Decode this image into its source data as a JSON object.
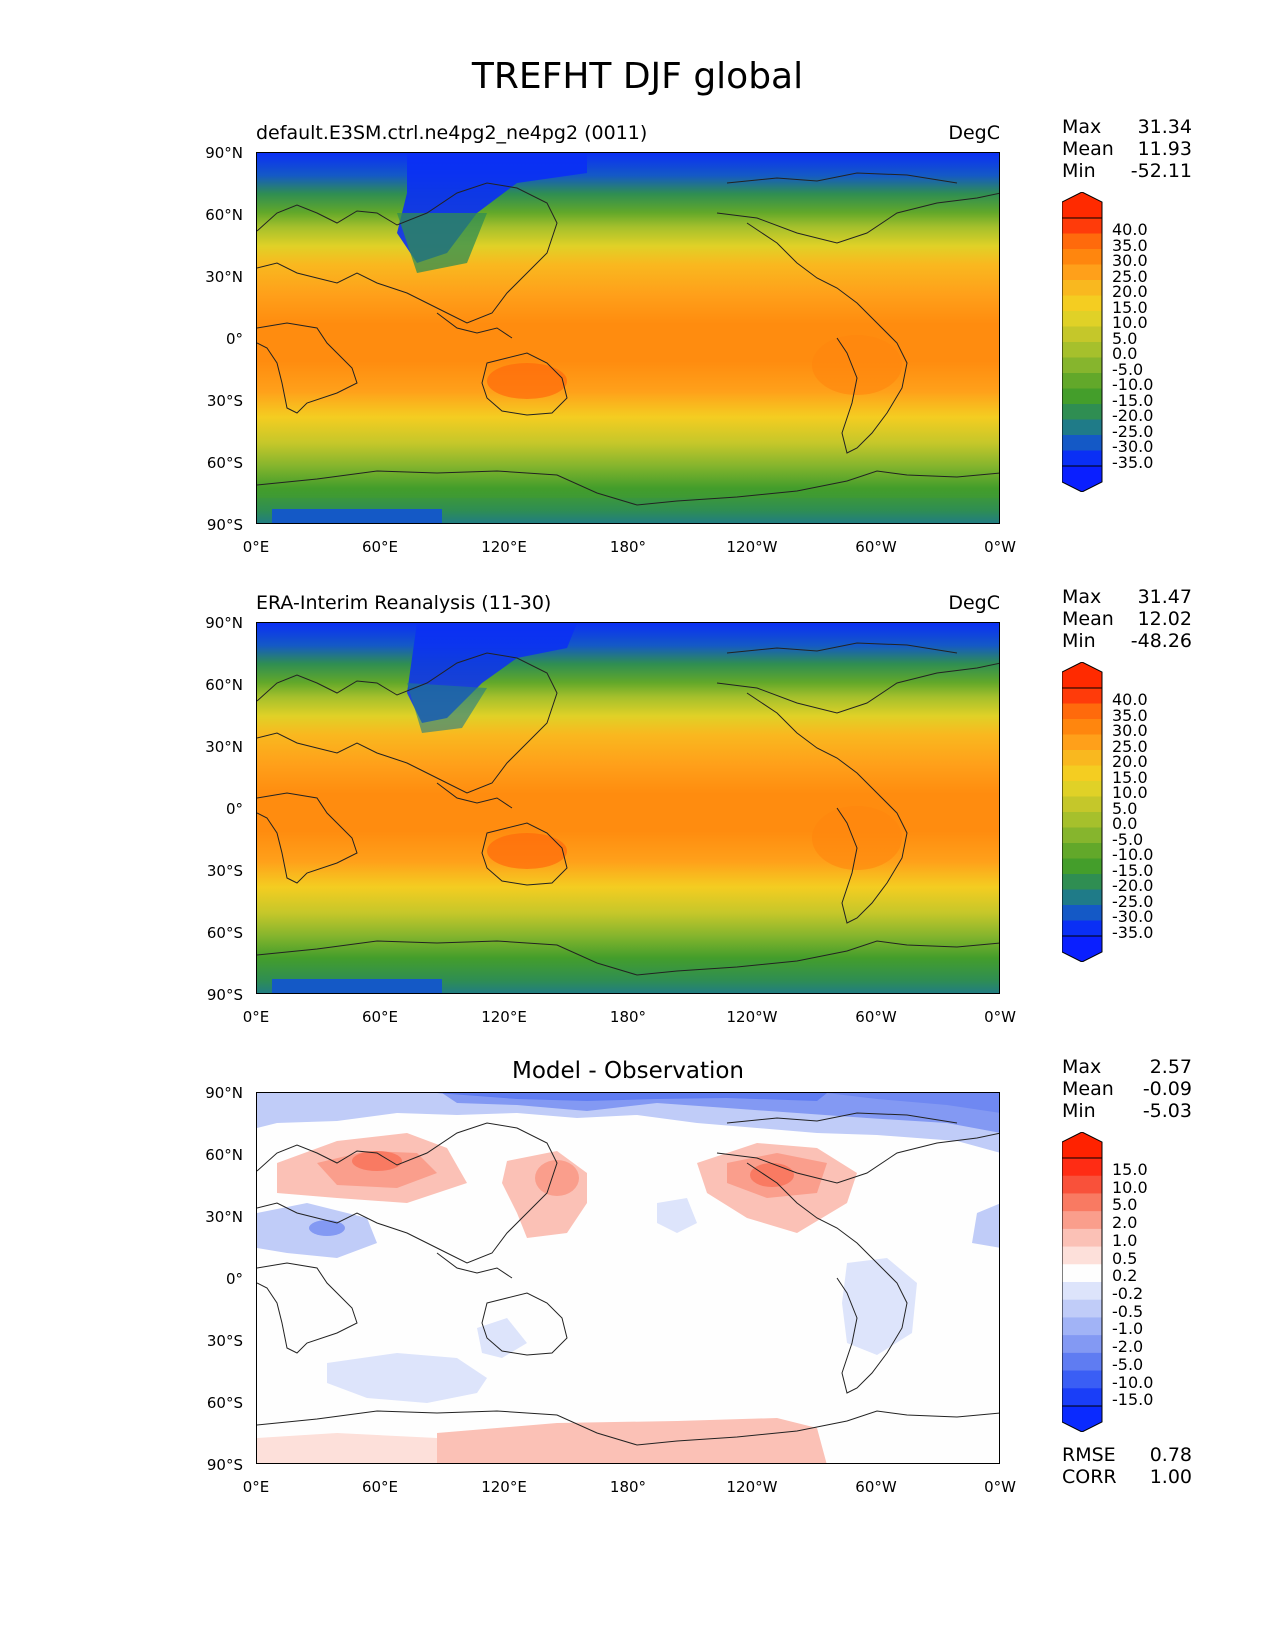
{
  "figure": {
    "title": "TREFHT DJF global"
  },
  "axes": {
    "yticks": [
      "90°N",
      "60°N",
      "30°N",
      "0°",
      "30°S",
      "60°S",
      "90°S"
    ],
    "xticks": [
      "0°E",
      "60°E",
      "120°E",
      "180°",
      "120°W",
      "60°W",
      "0°W"
    ]
  },
  "panels": [
    {
      "id": "model",
      "title_left": "default.E3SM.ctrl.ne4pg2_ne4pg2 (0011)",
      "title_right": "DegC",
      "stats": [
        {
          "label": "Max",
          "value": "31.34"
        },
        {
          "label": "Mean",
          "value": "11.93"
        },
        {
          "label": "Min",
          "value": "-52.11"
        }
      ],
      "colorbar_labels": [
        "40.0",
        "35.0",
        "30.0",
        "25.0",
        "20.0",
        "15.0",
        "10.0",
        "5.0",
        "0.0",
        "-5.0",
        "-10.0",
        "-15.0",
        "-20.0",
        "-25.0",
        "-30.0",
        "-35.0"
      ],
      "colorbar_colors": [
        "#ff3b0a",
        "#ff6a0c",
        "#ff860e",
        "#ffa01a",
        "#f9b81f",
        "#f4cd21",
        "#e0d127",
        "#c5c72a",
        "#a6c02c",
        "#86b52d",
        "#62a82a",
        "#449e2b",
        "#2f8e52",
        "#1f7b88",
        "#1459c6",
        "#0a2ff5"
      ],
      "colorbar_arrows": {
        "top": "#ff2a00",
        "bottom": "#0a1fff"
      }
    },
    {
      "id": "obs",
      "title_left": "ERA-Interim Reanalysis (11-30)",
      "title_right": "DegC",
      "stats": [
        {
          "label": "Max",
          "value": "31.47"
        },
        {
          "label": "Mean",
          "value": "12.02"
        },
        {
          "label": "Min",
          "value": "-48.26"
        }
      ],
      "colorbar_labels": [
        "40.0",
        "35.0",
        "30.0",
        "25.0",
        "20.0",
        "15.0",
        "10.0",
        "5.0",
        "0.0",
        "-5.0",
        "-10.0",
        "-15.0",
        "-20.0",
        "-25.0",
        "-30.0",
        "-35.0"
      ],
      "colorbar_colors": [
        "#ff3b0a",
        "#ff6a0c",
        "#ff860e",
        "#ffa01a",
        "#f9b81f",
        "#f4cd21",
        "#e0d127",
        "#c5c72a",
        "#a6c02c",
        "#86b52d",
        "#62a82a",
        "#449e2b",
        "#2f8e52",
        "#1f7b88",
        "#1459c6",
        "#0a2ff5"
      ],
      "colorbar_arrows": {
        "top": "#ff2a00",
        "bottom": "#0a1fff"
      }
    },
    {
      "id": "diff",
      "title_center": "Model - Observation",
      "stats": [
        {
          "label": "Max",
          "value": "2.57"
        },
        {
          "label": "Mean",
          "value": "-0.09"
        },
        {
          "label": "Min",
          "value": "-5.03"
        }
      ],
      "colorbar_labels": [
        "15.0",
        "10.0",
        "5.0",
        "2.0",
        "1.0",
        "0.5",
        "0.2",
        "-0.2",
        "-0.5",
        "-1.0",
        "-2.0",
        "-5.0",
        "-10.0",
        "-15.0"
      ],
      "colorbar_colors": [
        "#ff2c14",
        "#f9513a",
        "#f97a62",
        "#fa9e8c",
        "#fbc1b6",
        "#fde0da",
        "#fefefe",
        "#dde4fb",
        "#c0ccf8",
        "#a1b3f6",
        "#8399f3",
        "#5f7cf2",
        "#3a5ef5",
        "#1a3ef8"
      ],
      "colorbar_arrows": {
        "top": "#ff2200",
        "bottom": "#0a2aff"
      },
      "footer": [
        {
          "label": "RMSE",
          "value": "0.78"
        },
        {
          "label": "CORR",
          "value": "1.00"
        }
      ]
    }
  ]
}
